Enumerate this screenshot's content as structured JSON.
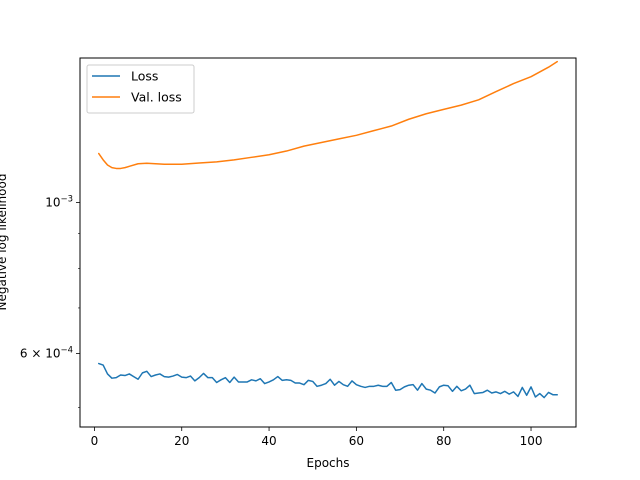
{
  "chart_data": {
    "type": "line",
    "title": "",
    "xlabel": "Epochs",
    "ylabel": "Negative log likelihood",
    "xlim": [
      -3.3,
      110.3
    ],
    "ylim": [
      0.000468,
      0.00163
    ],
    "yscale": "log",
    "grid": false,
    "legend_position": "top-left",
    "x_ticks": [
      0,
      20,
      40,
      60,
      80,
      100
    ],
    "x_tick_labels": [
      "0",
      "20",
      "40",
      "60",
      "80",
      "100"
    ],
    "y_ticks": [
      0.0006,
      0.001
    ],
    "y_tick_labels": [
      {
        "base": "6 × 10",
        "exp": "−4"
      },
      {
        "base": "10",
        "exp": "−3"
      }
    ],
    "series": [
      {
        "name": "Loss",
        "color": "#1f77b4",
        "x": [
          1,
          2,
          3,
          4,
          5,
          6,
          7,
          8,
          9,
          10,
          11,
          12,
          13,
          14,
          15,
          16,
          17,
          18,
          19,
          20,
          21,
          22,
          23,
          24,
          25,
          26,
          27,
          28,
          29,
          30,
          31,
          32,
          33,
          34,
          35,
          36,
          37,
          38,
          39,
          40,
          41,
          42,
          43,
          44,
          45,
          46,
          47,
          48,
          49,
          50,
          51,
          52,
          53,
          54,
          55,
          56,
          57,
          58,
          59,
          60,
          61,
          62,
          63,
          64,
          65,
          66,
          67,
          68,
          69,
          70,
          71,
          72,
          73,
          74,
          75,
          76,
          77,
          78,
          79,
          80,
          81,
          82,
          83,
          84,
          85,
          86,
          87,
          88,
          89,
          90,
          91,
          92,
          93,
          94,
          95,
          96,
          97,
          98,
          99,
          100,
          101,
          102,
          103,
          104,
          105,
          106
        ],
        "values": [
          0.00058,
          0.000577,
          0.00056,
          0.000552,
          0.000553,
          0.000558,
          0.000557,
          0.00056,
          0.000555,
          0.00055,
          0.000562,
          0.000565,
          0.000555,
          0.000558,
          0.00056,
          0.000555,
          0.000554,
          0.000556,
          0.000559,
          0.000554,
          0.000553,
          0.000556,
          0.000547,
          0.000553,
          0.000561,
          0.000553,
          0.000553,
          0.000544,
          0.000549,
          0.000553,
          0.000544,
          0.000554,
          0.000545,
          0.000545,
          0.000545,
          0.000549,
          0.000547,
          0.000551,
          0.000542,
          0.000545,
          0.000549,
          0.000555,
          0.000548,
          0.000549,
          0.000548,
          0.000543,
          0.000543,
          0.00054,
          0.000548,
          0.000546,
          0.000537,
          0.000539,
          0.000542,
          0.00055,
          0.000539,
          0.000546,
          0.00054,
          0.000537,
          0.000547,
          0.00054,
          0.000537,
          0.000535,
          0.000537,
          0.000537,
          0.000539,
          0.000537,
          0.000537,
          0.000544,
          0.00053,
          0.000531,
          0.000536,
          0.000539,
          0.00054,
          0.00053,
          0.000542,
          0.000532,
          0.00053,
          0.000525,
          0.000536,
          0.000539,
          0.000538,
          0.000528,
          0.000537,
          0.000529,
          0.000532,
          0.000539,
          0.000524,
          0.000525,
          0.000526,
          0.00053,
          0.000525,
          0.000527,
          0.000524,
          0.000528,
          0.000523,
          0.000527,
          0.000519,
          0.000535,
          0.000521,
          0.000536,
          0.000518,
          0.000524,
          0.000517,
          0.000526,
          0.000522,
          0.000522
        ]
      },
      {
        "name": "Val. loss",
        "color": "#ff7f0e",
        "x": [
          1,
          2,
          3,
          4,
          5,
          6,
          7,
          8,
          10,
          12,
          14,
          16,
          20,
          24,
          28,
          32,
          36,
          40,
          44,
          48,
          52,
          56,
          60,
          64,
          68,
          72,
          76,
          80,
          84,
          88,
          92,
          96,
          100,
          104,
          106
        ],
        "values": [
          0.00118,
          0.001155,
          0.001135,
          0.001125,
          0.001122,
          0.001122,
          0.001125,
          0.00113,
          0.00114,
          0.001142,
          0.00114,
          0.001138,
          0.001138,
          0.001143,
          0.001147,
          0.001155,
          0.001165,
          0.001175,
          0.00119,
          0.00121,
          0.001225,
          0.00124,
          0.001255,
          0.001275,
          0.001295,
          0.001325,
          0.00135,
          0.00137,
          0.00139,
          0.001415,
          0.001455,
          0.001495,
          0.00153,
          0.00158,
          0.00161
        ]
      }
    ]
  }
}
